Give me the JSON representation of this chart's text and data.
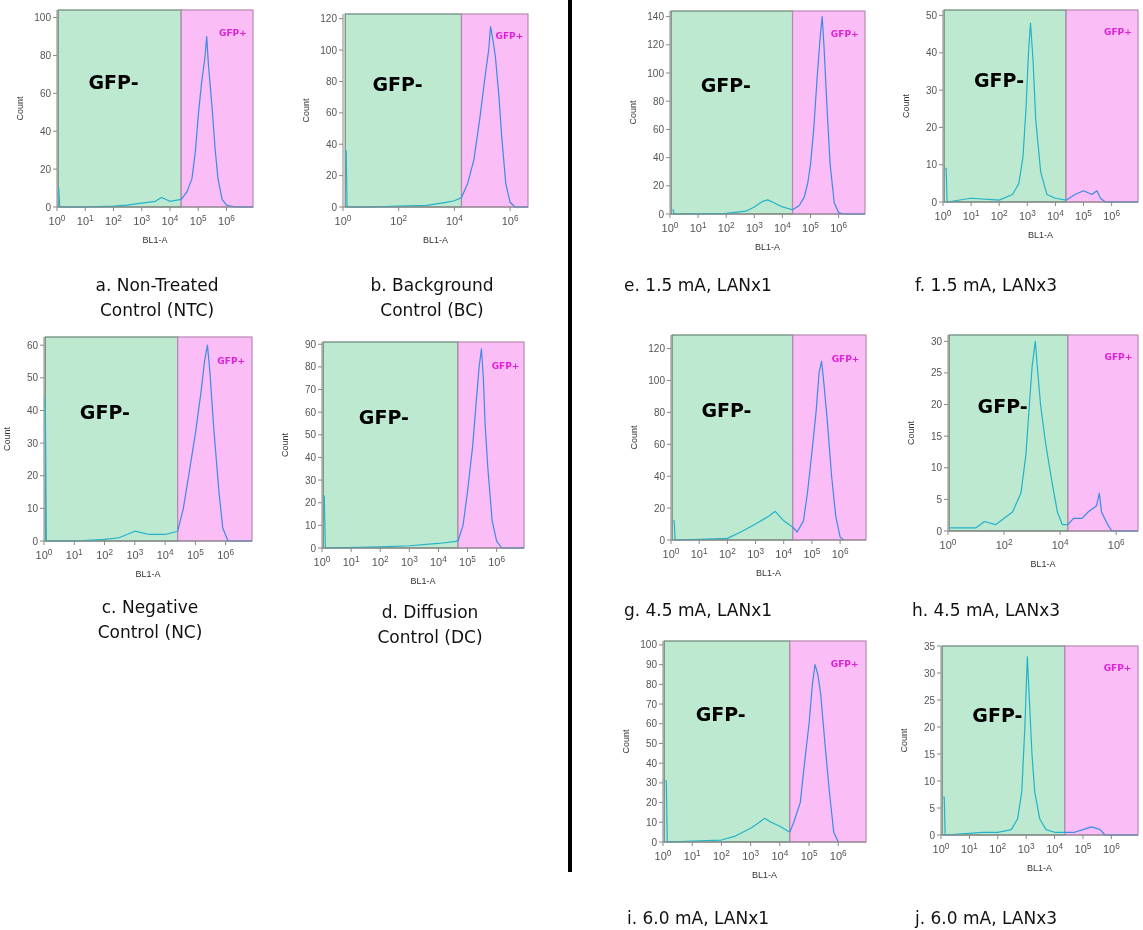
{
  "chart_data": [
    {
      "type": "line",
      "title": "a. Non-Treated Control (NTC)",
      "xlabel": "BL1-A",
      "ylabel": "Count",
      "log": "x",
      "xlim": [
        1,
        8700000
      ],
      "xticks": [
        {
          "value": 1,
          "label": "10$^{0}$"
        },
        {
          "value": 10,
          "label": "10$^{1}$"
        },
        {
          "value": 100,
          "label": "10$^{2}$"
        },
        {
          "value": 1000,
          "label": "10$^{3}$"
        },
        {
          "value": 10000,
          "label": "10$^{4}$"
        },
        {
          "value": 100000,
          "label": "10$^{5}$"
        },
        {
          "value": 1000000,
          "label": "10$^{6}$"
        }
      ],
      "ylim": [
        0,
        104
      ],
      "yticks": [
        0,
        20,
        40,
        60,
        80,
        100
      ],
      "bands": [
        {
          "axis": "x",
          "from": 1.1,
          "to": 25000,
          "label": "GFP-",
          "color": "#bde9d1"
        },
        {
          "axis": "x",
          "from": 25000,
          "to": 8700000,
          "label": "GFP+",
          "color": "#fbbdf6"
        }
      ],
      "series": [
        {
          "color": "#22b3c9",
          "x": [
            1.1,
            1.15,
            1.25,
            2,
            10,
            100,
            300,
            1000,
            3000,
            5000,
            10000,
            25000
          ],
          "values": [
            10,
            10,
            0,
            0,
            0,
            0.5,
            1,
            2,
            3,
            5,
            3,
            4
          ]
        },
        {
          "color": "#3d8ae8",
          "x": [
            25000,
            40000,
            60000,
            80000,
            100000,
            130000,
            170000,
            200000,
            230000,
            300000,
            400000,
            500000,
            700000,
            1000000,
            2000000,
            8700000
          ],
          "values": [
            4,
            8,
            15,
            30,
            48,
            65,
            78,
            90,
            75,
            55,
            30,
            15,
            4,
            1,
            0,
            0
          ]
        }
      ]
    },
    {
      "type": "line",
      "title": "b. Background Control (BC)",
      "xlabel": "BL1-A",
      "ylabel": "Count",
      "log": "x",
      "xlim": [
        1,
        4400000
      ],
      "xticks": [
        {
          "value": 1,
          "label": "10$^{0}$"
        },
        {
          "value": 100,
          "label": "10$^{2}$"
        },
        {
          "value": 10000,
          "label": "10$^{4}$"
        },
        {
          "value": 1000000,
          "label": "10$^{6}$"
        }
      ],
      "ylim": [
        0,
        123
      ],
      "yticks": [
        0,
        20,
        40,
        60,
        80,
        100,
        120
      ],
      "bands": [
        {
          "axis": "x",
          "from": 1.2,
          "to": 18000,
          "label": "GFP-",
          "color": "#bde9d1"
        },
        {
          "axis": "x",
          "from": 18000,
          "to": 4400000,
          "label": "GFP+",
          "color": "#fbbdf6"
        }
      ],
      "series": [
        {
          "color": "#22b3c9",
          "x": [
            1.25,
            1.3,
            1.4,
            10,
            100,
            1000,
            5000,
            10000,
            18000
          ],
          "values": [
            36,
            36,
            0,
            0,
            0.5,
            1,
            3,
            4,
            6
          ]
        },
        {
          "color": "#3d8ae8",
          "x": [
            18000,
            30000,
            50000,
            80000,
            120000,
            170000,
            200000,
            250000,
            300000,
            400000,
            500000,
            700000,
            1000000,
            1500000,
            4400000
          ],
          "values": [
            6,
            15,
            30,
            55,
            80,
            100,
            115,
            105,
            95,
            70,
            45,
            15,
            3,
            0,
            0
          ]
        }
      ]
    },
    {
      "type": "line",
      "title": "c. Negative Control (NC)",
      "xlabel": "BL1-A",
      "ylabel": "Count",
      "log": "x",
      "xlim": [
        1,
        7400000
      ],
      "xticks": [
        {
          "value": 1,
          "label": "10$^{0}$"
        },
        {
          "value": 10,
          "label": "10$^{1}$"
        },
        {
          "value": 100,
          "label": "10$^{2}$"
        },
        {
          "value": 1000,
          "label": "10$^{3}$"
        },
        {
          "value": 10000,
          "label": "10$^{4}$"
        },
        {
          "value": 100000,
          "label": "10$^{5}$"
        },
        {
          "value": 1000000,
          "label": "10$^{6}$"
        }
      ],
      "ylim": [
        0,
        62.5
      ],
      "yticks": [
        0,
        10,
        20,
        30,
        40,
        50,
        60
      ],
      "bands": [
        {
          "axis": "x",
          "from": 1.1,
          "to": 26000,
          "label": "GFP-",
          "color": "#bde9d1"
        },
        {
          "axis": "x",
          "from": 26000,
          "to": 7400000,
          "label": "GFP+",
          "color": "#fbbdf6"
        }
      ],
      "series": [
        {
          "color": "#22b3c9",
          "x": [
            1.05,
            1.1,
            1.2,
            10,
            100,
            300,
            1000,
            3000,
            10000,
            26000
          ],
          "values": [
            44,
            44,
            0,
            0,
            0.5,
            1,
            3,
            2,
            2,
            3
          ]
        },
        {
          "color": "#3d8ae8",
          "x": [
            26000,
            40000,
            60000,
            100000,
            150000,
            200000,
            250000,
            300000,
            400000,
            600000,
            800000,
            1200000,
            7400000
          ],
          "values": [
            3,
            10,
            20,
            33,
            45,
            55,
            60,
            52,
            35,
            15,
            4,
            0,
            0
          ]
        }
      ]
    },
    {
      "type": "line",
      "title": "d. Diffusion Control (DC)",
      "xlabel": "BL1-A",
      "ylabel": "Count",
      "log": "x",
      "xlim": [
        1,
        8700000
      ],
      "xticks": [
        {
          "value": 1,
          "label": "10$^{0}$"
        },
        {
          "value": 10,
          "label": "10$^{1}$"
        },
        {
          "value": 100,
          "label": "10$^{2}$"
        },
        {
          "value": 1000,
          "label": "10$^{3}$"
        },
        {
          "value": 10000,
          "label": "10$^{4}$"
        },
        {
          "value": 100000,
          "label": "10$^{5}$"
        },
        {
          "value": 1000000,
          "label": "10$^{6}$"
        }
      ],
      "ylim": [
        0,
        91
      ],
      "yticks": [
        0,
        10,
        20,
        30,
        40,
        50,
        60,
        70,
        80,
        90
      ],
      "bands": [
        {
          "axis": "x",
          "from": 1.1,
          "to": 47000,
          "label": "GFP-",
          "color": "#bde9d1"
        },
        {
          "axis": "x",
          "from": 47000,
          "to": 8700000,
          "label": "GFP+",
          "color": "#fbbdf6"
        }
      ],
      "series": [
        {
          "color": "#22b3c9",
          "x": [
            1.1,
            1.2,
            1.3,
            100,
            1000,
            10000,
            47000
          ],
          "values": [
            23,
            23,
            0,
            0.5,
            1,
            2,
            3
          ]
        },
        {
          "color": "#3d8ae8",
          "x": [
            47000,
            70000,
            100000,
            150000,
            200000,
            250000,
            300000,
            350000,
            400000,
            500000,
            700000,
            1000000,
            1500000,
            8700000
          ],
          "values": [
            3,
            10,
            25,
            45,
            65,
            80,
            88,
            75,
            55,
            35,
            12,
            3,
            0,
            0
          ]
        }
      ]
    },
    {
      "type": "line",
      "title": "e. 1.5 mA, LANx1",
      "xlabel": "BL1-A",
      "ylabel": "Count",
      "log": "x",
      "xlim": [
        1,
        8700000
      ],
      "xticks": [
        {
          "value": 1,
          "label": "10$^{0}$"
        },
        {
          "value": 10,
          "label": "10$^{1}$"
        },
        {
          "value": 100,
          "label": "10$^{2}$"
        },
        {
          "value": 1000,
          "label": "10$^{3}$"
        },
        {
          "value": 10000,
          "label": "10$^{4}$"
        },
        {
          "value": 100000,
          "label": "10$^{5}$"
        },
        {
          "value": 1000000,
          "label": "10$^{6}$"
        }
      ],
      "ylim": [
        0,
        144
      ],
      "yticks": [
        0,
        20,
        40,
        60,
        80,
        100,
        120,
        140
      ],
      "bands": [
        {
          "axis": "x",
          "from": 1.1,
          "to": 23000,
          "label": "GFP-",
          "color": "#bde9d1"
        },
        {
          "axis": "x",
          "from": 23000,
          "to": 8700000,
          "label": "GFP+",
          "color": "#fbbdf6"
        }
      ],
      "series": [
        {
          "color": "#22b3c9",
          "x": [
            1.2,
            1.3,
            1.4,
            100,
            500,
            1000,
            2000,
            3000,
            5000,
            10000,
            23000
          ],
          "values": [
            3,
            3,
            0,
            0.5,
            2,
            5,
            9,
            10,
            8,
            5,
            3
          ]
        },
        {
          "color": "#3d8ae8",
          "x": [
            23000,
            40000,
            60000,
            80000,
            100000,
            130000,
            170000,
            220000,
            260000,
            300000,
            400000,
            500000,
            700000,
            1000000,
            1500000,
            8700000
          ],
          "values": [
            3,
            6,
            12,
            22,
            35,
            60,
            95,
            125,
            140,
            120,
            70,
            35,
            8,
            1,
            0,
            0
          ]
        }
      ]
    },
    {
      "type": "line",
      "title": "f. 1.5 mA, LANx3",
      "xlabel": "BL1-A",
      "ylabel": "Count",
      "log": "x",
      "xlim": [
        1,
        8700000
      ],
      "xticks": [
        {
          "value": 1,
          "label": "10$^{0}$"
        },
        {
          "value": 10,
          "label": "10$^{1}$"
        },
        {
          "value": 100,
          "label": "10$^{2}$"
        },
        {
          "value": 1000,
          "label": "10$^{3}$"
        },
        {
          "value": 10000,
          "label": "10$^{4}$"
        },
        {
          "value": 100000,
          "label": "10$^{5}$"
        },
        {
          "value": 1000000,
          "label": "10$^{6}$"
        }
      ],
      "ylim": [
        0,
        51.5
      ],
      "yticks": [
        0,
        10,
        20,
        30,
        40,
        50
      ],
      "bands": [
        {
          "axis": "x",
          "from": 1.1,
          "to": 24000,
          "label": "GFP-",
          "color": "#bde9d1"
        },
        {
          "axis": "x",
          "from": 24000,
          "to": 8700000,
          "label": "GFP+",
          "color": "#fbbdf6"
        }
      ],
      "series": [
        {
          "color": "#22b3c9",
          "x": [
            1.2,
            1.3,
            1.4,
            10,
            100,
            300,
            500,
            700,
            900,
            1100,
            1300,
            1600,
            2000,
            3000,
            5000,
            10000,
            24000
          ],
          "values": [
            9,
            9,
            0,
            1,
            0.5,
            2,
            5,
            12,
            25,
            40,
            48,
            38,
            22,
            8,
            2,
            1,
            0.5
          ]
        },
        {
          "color": "#3d8ae8",
          "x": [
            24000,
            50000,
            100000,
            200000,
            300000,
            400000,
            600000,
            8700000
          ],
          "values": [
            0.5,
            2,
            3,
            2,
            3,
            1,
            0,
            0
          ]
        }
      ]
    },
    {
      "type": "line",
      "title": "g. 4.5 mA, LANx1",
      "xlabel": "BL1-A",
      "ylabel": "Count",
      "log": "x",
      "xlim": [
        1,
        8300000
      ],
      "xticks": [
        {
          "value": 1,
          "label": "10$^{0}$"
        },
        {
          "value": 10,
          "label": "10$^{1}$"
        },
        {
          "value": 100,
          "label": "10$^{2}$"
        },
        {
          "value": 1000,
          "label": "10$^{3}$"
        },
        {
          "value": 10000,
          "label": "10$^{4}$"
        },
        {
          "value": 100000,
          "label": "10$^{5}$"
        },
        {
          "value": 1000000,
          "label": "10$^{6}$"
        }
      ],
      "ylim": [
        0,
        128.5
      ],
      "yticks": [
        0,
        20,
        40,
        60,
        80,
        100,
        120
      ],
      "bands": [
        {
          "axis": "x",
          "from": 1.1,
          "to": 21000,
          "label": "GFP-",
          "color": "#bde9d1"
        },
        {
          "axis": "x",
          "from": 21000,
          "to": 8300000,
          "label": "GFP+",
          "color": "#fbbdf6"
        }
      ],
      "series": [
        {
          "color": "#22b3c9",
          "x": [
            1.2,
            1.3,
            1.4,
            20,
            100,
            300,
            1000,
            3000,
            5000,
            10000,
            21000
          ],
          "values": [
            12,
            12,
            0,
            0.5,
            1,
            5,
            10,
            15,
            18,
            12,
            8
          ]
        },
        {
          "color": "#3d8ae8",
          "x": [
            21000,
            30000,
            50000,
            70000,
            100000,
            140000,
            180000,
            220000,
            260000,
            350000,
            500000,
            700000,
            1000000,
            1300000
          ],
          "values": [
            8,
            5,
            12,
            30,
            55,
            80,
            105,
            112,
            100,
            75,
            40,
            15,
            2,
            0
          ]
        }
      ]
    },
    {
      "type": "line",
      "title": "h. 4.5 mA, LANx3",
      "xlabel": "BL1-A",
      "ylabel": "Count",
      "log": "x",
      "xlim": [
        1,
        6000000
      ],
      "xticks": [
        {
          "value": 1,
          "label": "10$^{0}$"
        },
        {
          "value": 100,
          "label": "10$^{2}$"
        },
        {
          "value": 10000,
          "label": "10$^{4}$"
        },
        {
          "value": 1000000,
          "label": "10$^{6}$"
        }
      ],
      "ylim": [
        0,
        31
      ],
      "yticks": [
        0,
        5,
        10,
        15,
        20,
        25,
        30
      ],
      "bands": [
        {
          "axis": "x",
          "from": 1.1,
          "to": 19000,
          "label": "GFP-",
          "color": "#bde9d1"
        },
        {
          "axis": "x",
          "from": 19000,
          "to": 6000000,
          "label": "GFP+",
          "color": "#fbbdf6"
        }
      ],
      "series": [
        {
          "color": "#22b3c9",
          "x": [
            1.15,
            10,
            20,
            50,
            100,
            200,
            400,
            600,
            800,
            1000,
            1300,
            1600,
            2000,
            3000,
            5000,
            8000,
            12000,
            19000
          ],
          "values": [
            0.5,
            0.5,
            1.5,
            1,
            2,
            3,
            6,
            12,
            20,
            26,
            30,
            25,
            20,
            14,
            8,
            3,
            1,
            1
          ]
        },
        {
          "color": "#3d8ae8",
          "x": [
            19000,
            30000,
            60000,
            100000,
            200000,
            250000,
            300000,
            500000,
            700000,
            6000000
          ],
          "values": [
            1,
            2,
            2,
            3,
            4,
            6,
            3,
            1,
            0,
            0
          ]
        }
      ]
    },
    {
      "type": "line",
      "title": "i. 6.0 mA, LANx1",
      "xlabel": "BL1-A",
      "ylabel": "Count",
      "log": "x",
      "xlim": [
        1,
        8900000
      ],
      "xticks": [
        {
          "value": 1,
          "label": "10$^{0}$"
        },
        {
          "value": 10,
          "label": "10$^{1}$"
        },
        {
          "value": 100,
          "label": "10$^{2}$"
        },
        {
          "value": 1000,
          "label": "10$^{3}$"
        },
        {
          "value": 10000,
          "label": "10$^{4}$"
        },
        {
          "value": 100000,
          "label": "10$^{5}$"
        },
        {
          "value": 1000000,
          "label": "10$^{6}$"
        }
      ],
      "ylim": [
        0,
        102
      ],
      "yticks": [
        0,
        10,
        20,
        30,
        40,
        50,
        60,
        70,
        80,
        90,
        100
      ],
      "bands": [
        {
          "axis": "x",
          "from": 1.1,
          "to": 22000,
          "label": "GFP-",
          "color": "#bde9d1"
        },
        {
          "axis": "x",
          "from": 22000,
          "to": 8900000,
          "label": "GFP+",
          "color": "#fbbdf6"
        }
      ],
      "series": [
        {
          "color": "#22b3c9",
          "x": [
            1.2,
            1.3,
            1.4,
            10,
            100,
            300,
            1000,
            2000,
            3000,
            5000,
            10000,
            22000
          ],
          "values": [
            31,
            31,
            0,
            0.5,
            1,
            3,
            7,
            10,
            12,
            10,
            8,
            5
          ]
        },
        {
          "color": "#3d8ae8",
          "x": [
            22000,
            30000,
            50000,
            70000,
            100000,
            130000,
            160000,
            200000,
            250000,
            350000,
            500000,
            700000,
            1000000
          ],
          "values": [
            5,
            10,
            20,
            40,
            60,
            80,
            90,
            85,
            75,
            50,
            25,
            5,
            0
          ]
        }
      ]
    },
    {
      "type": "line",
      "title": "j. 6.0 mA, LANx3",
      "xlabel": "BL1-A",
      "ylabel": "Count",
      "log": "x",
      "xlim": [
        1,
        8700000
      ],
      "xticks": [
        {
          "value": 1,
          "label": "10$^{0}$"
        },
        {
          "value": 10,
          "label": "10$^{1}$"
        },
        {
          "value": 100,
          "label": "10$^{2}$"
        },
        {
          "value": 1000,
          "label": "10$^{3}$"
        },
        {
          "value": 10000,
          "label": "10$^{4}$"
        },
        {
          "value": 100000,
          "label": "10$^{5}$"
        },
        {
          "value": 1000000,
          "label": "10$^{6}$"
        }
      ],
      "ylim": [
        0,
        35
      ],
      "yticks": [
        0,
        5,
        10,
        15,
        20,
        25,
        30,
        35
      ],
      "bands": [
        {
          "axis": "x",
          "from": 1.1,
          "to": 23000,
          "label": "GFP-",
          "color": "#bde9d1"
        },
        {
          "axis": "x",
          "from": 23000,
          "to": 8700000,
          "label": "GFP+",
          "color": "#fbbdf6"
        }
      ],
      "series": [
        {
          "color": "#22b3c9",
          "x": [
            1.2,
            1.3,
            1.4,
            30,
            100,
            300,
            500,
            700,
            900,
            1100,
            1300,
            1600,
            2000,
            3000,
            5000,
            10000,
            23000
          ],
          "values": [
            7,
            7,
            0,
            0.5,
            0.5,
            1,
            3,
            8,
            20,
            33,
            25,
            15,
            8,
            3,
            1,
            0.5,
            0.5
          ]
        },
        {
          "color": "#3d8ae8",
          "x": [
            23000,
            50000,
            100000,
            200000,
            400000,
            600000,
            8700000
          ],
          "values": [
            0.5,
            0.5,
            1,
            1.5,
            1,
            0,
            0
          ]
        }
      ]
    }
  ]
}
